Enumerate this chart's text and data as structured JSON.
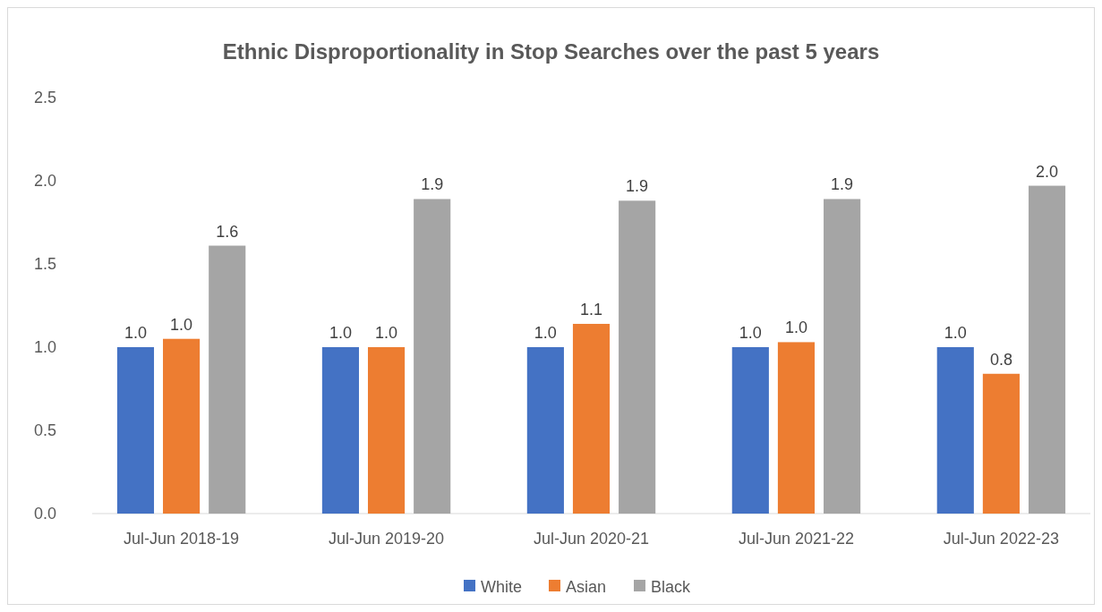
{
  "chart_data": {
    "type": "bar",
    "title": "Ethnic Disproportionality in Stop Searches over the past 5 years",
    "categories": [
      "Jul-Jun 2018-19",
      "Jul-Jun 2019-20",
      "Jul-Jun 2020-21",
      "Jul-Jun 2021-22",
      "Jul-Jun 2022-23"
    ],
    "series": [
      {
        "name": "White",
        "color": "#4472c4",
        "values": [
          1.0,
          1.0,
          1.0,
          1.0,
          1.0
        ],
        "value_labels": [
          "1.0",
          "1.0",
          "1.0",
          "1.0",
          "1.0"
        ]
      },
      {
        "name": "Asian",
        "color": "#ed7d31",
        "values": [
          1.05,
          1.0,
          1.14,
          1.03,
          0.84
        ],
        "value_labels": [
          "1.0",
          "1.0",
          "1.1",
          "1.0",
          "0.8"
        ]
      },
      {
        "name": "Black",
        "color": "#a5a5a5",
        "values": [
          1.61,
          1.89,
          1.88,
          1.89,
          1.97
        ],
        "value_labels": [
          "1.6",
          "1.9",
          "1.9",
          "1.9",
          "2.0"
        ]
      }
    ],
    "ylim": [
      0,
      2.5
    ],
    "yticks": [
      {
        "value": 0,
        "label": "0.0"
      },
      {
        "value": 0.5,
        "label": "0.5"
      },
      {
        "value": 1,
        "label": "1.0"
      },
      {
        "value": 1.5,
        "label": "1.5"
      },
      {
        "value": 2,
        "label": "2.0"
      },
      {
        "value": 2.5,
        "label": "2.5"
      }
    ],
    "grid": false,
    "legend": "bottom"
  }
}
